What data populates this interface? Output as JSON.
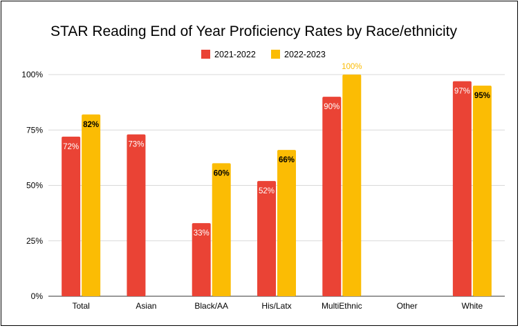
{
  "chart_data": {
    "type": "bar",
    "title": "STAR Reading End of Year Proficiency Rates by Race/ethnicity",
    "xlabel": "",
    "ylabel": "",
    "ylim": [
      0,
      100
    ],
    "y_ticks": [
      "0%",
      "25%",
      "50%",
      "75%",
      "100%"
    ],
    "y_tick_values": [
      0,
      25,
      50,
      75,
      100
    ],
    "grid": true,
    "legend_position": "top",
    "categories": [
      "Total",
      "Asian",
      "Black/AA",
      "His/Latx",
      "MultiEthnic",
      "Other",
      "White"
    ],
    "series": [
      {
        "name": "2021-2022",
        "color": "#ea4335",
        "values": [
          72,
          73,
          33,
          52,
          90,
          null,
          97
        ],
        "labels": [
          "72%",
          "73%",
          "33%",
          "52%",
          "90%",
          "",
          "97%"
        ]
      },
      {
        "name": "2022-2023",
        "color": "#fbbc04",
        "values": [
          82,
          null,
          60,
          66,
          100,
          null,
          95
        ],
        "labels": [
          "82%",
          "",
          "60%",
          "66%",
          "100%",
          "",
          "95%"
        ]
      }
    ]
  }
}
